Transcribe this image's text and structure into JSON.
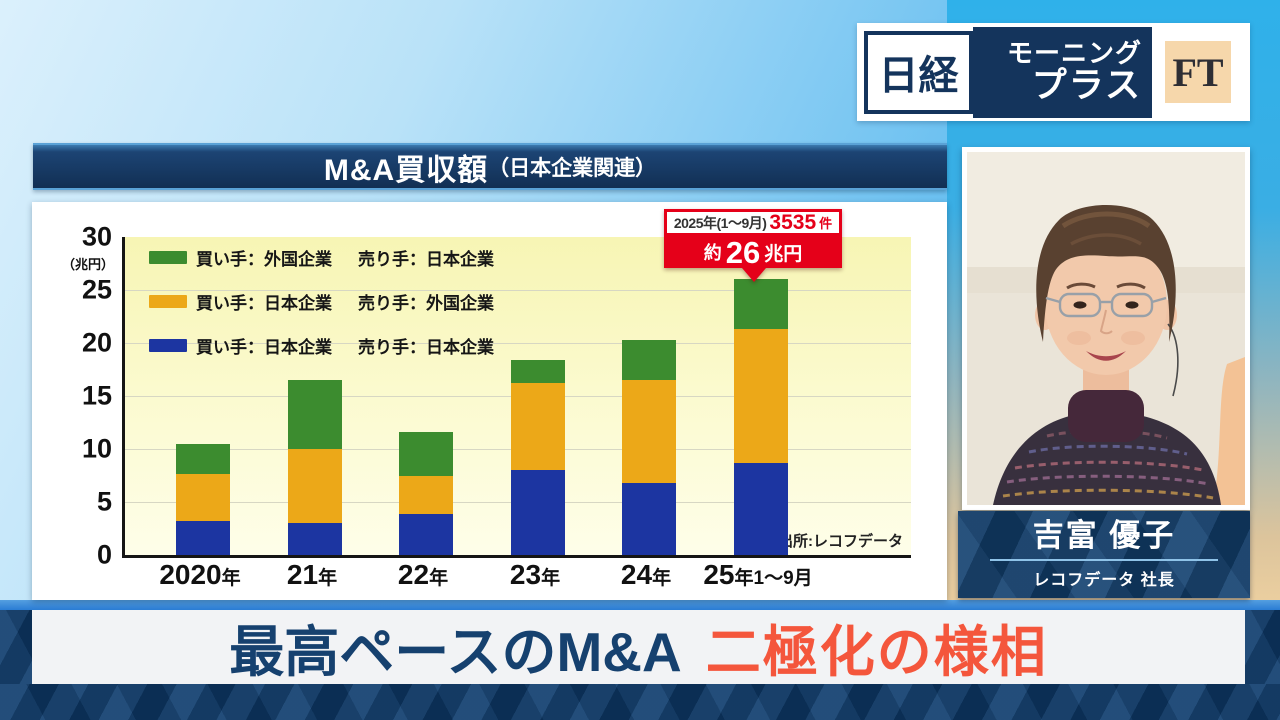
{
  "program": {
    "nikkei": "日経",
    "show_line1": "モーニング",
    "show_line2": "プラス",
    "ft": "FT"
  },
  "panel_title": {
    "main": "M&A買収額",
    "suffix": "（日本企業関連）"
  },
  "chart_data": {
    "type": "bar",
    "stacked": true,
    "title": "M&A買収額（日本企業関連）",
    "unit": "兆円",
    "unit_label": "（兆円）",
    "categories": [
      "2020年",
      "21年",
      "22年",
      "23年",
      "24年",
      "25年1～9月"
    ],
    "series": [
      {
        "name": "買い手：日本企業　売り手：日本企業",
        "color": "#1c35a1",
        "values": [
          3.2,
          3.0,
          3.9,
          8.0,
          6.8,
          8.7
        ]
      },
      {
        "name": "買い手：日本企業　売り手：外国企業",
        "color": "#eca818",
        "values": [
          4.4,
          7.0,
          3.6,
          8.2,
          9.7,
          12.6
        ]
      },
      {
        "name": "買い手：外国企業　売り手：日本企業",
        "color": "#3c8c2f",
        "values": [
          2.9,
          6.5,
          4.1,
          2.2,
          3.8,
          4.7
        ]
      }
    ],
    "totals": [
      10.5,
      16.5,
      11.6,
      18.4,
      20.3,
      26.0
    ],
    "ylim": [
      0,
      30
    ],
    "yticks": [
      0,
      5,
      10,
      15,
      20,
      25,
      30
    ],
    "grid": "horizontal",
    "legend_position": "top-left-inside",
    "source": "出所:レコフデータ",
    "annotation": {
      "label": "2025年(1～9月)",
      "count_value": "3535",
      "count_unit": "件",
      "amount_prefix": "約",
      "amount_value": "26",
      "amount_unit": "兆円"
    }
  },
  "legend": [
    {
      "color": "#3c8c2f",
      "buyer": "買い手：外国企業",
      "seller": "売り手：日本企業"
    },
    {
      "color": "#eca818",
      "buyer": "買い手：日本企業",
      "seller": "売り手：外国企業"
    },
    {
      "color": "#1c35a1",
      "buyer": "買い手：日本企業",
      "seller": "売り手：日本企業"
    }
  ],
  "guest": {
    "name": "吉富 優子",
    "title": "レコフデータ 社長"
  },
  "headline": {
    "part1": "最高ペースのM&A",
    "part2": "二極化の様相"
  },
  "colors": {
    "bar_blue": "#1c35a1",
    "bar_orange": "#eca818",
    "bar_green": "#3c8c2f",
    "callout_red": "#e50019",
    "headline_navy": "#16416f",
    "headline_red": "#f4563c",
    "banner_navy": "#122f53"
  }
}
